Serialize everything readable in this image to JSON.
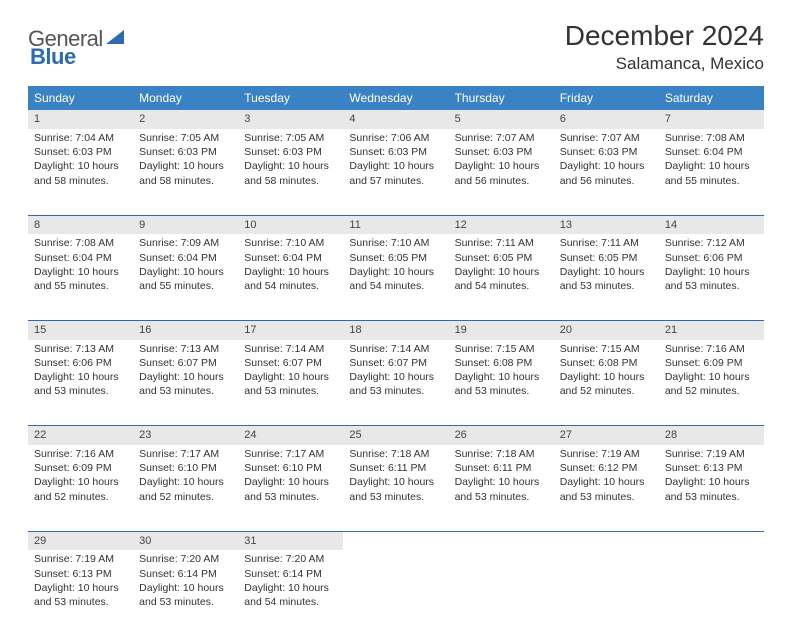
{
  "logo": {
    "part1": "General",
    "part2": "Blue",
    "accent_color": "#2d6ab0"
  },
  "title": "December 2024",
  "location": "Salamanca, Mexico",
  "colors": {
    "header_bg": "#3a82c4",
    "header_fg": "#ffffff",
    "daynum_bg": "#e8e8e8",
    "row_divider": "#2d6ab0",
    "text": "#333333"
  },
  "day_headers": [
    "Sunday",
    "Monday",
    "Tuesday",
    "Wednesday",
    "Thursday",
    "Friday",
    "Saturday"
  ],
  "days": [
    {
      "n": 1,
      "sr": "7:04 AM",
      "ss": "6:03 PM",
      "dl": "10 hours and 58 minutes."
    },
    {
      "n": 2,
      "sr": "7:05 AM",
      "ss": "6:03 PM",
      "dl": "10 hours and 58 minutes."
    },
    {
      "n": 3,
      "sr": "7:05 AM",
      "ss": "6:03 PM",
      "dl": "10 hours and 58 minutes."
    },
    {
      "n": 4,
      "sr": "7:06 AM",
      "ss": "6:03 PM",
      "dl": "10 hours and 57 minutes."
    },
    {
      "n": 5,
      "sr": "7:07 AM",
      "ss": "6:03 PM",
      "dl": "10 hours and 56 minutes."
    },
    {
      "n": 6,
      "sr": "7:07 AM",
      "ss": "6:03 PM",
      "dl": "10 hours and 56 minutes."
    },
    {
      "n": 7,
      "sr": "7:08 AM",
      "ss": "6:04 PM",
      "dl": "10 hours and 55 minutes."
    },
    {
      "n": 8,
      "sr": "7:08 AM",
      "ss": "6:04 PM",
      "dl": "10 hours and 55 minutes."
    },
    {
      "n": 9,
      "sr": "7:09 AM",
      "ss": "6:04 PM",
      "dl": "10 hours and 55 minutes."
    },
    {
      "n": 10,
      "sr": "7:10 AM",
      "ss": "6:04 PM",
      "dl": "10 hours and 54 minutes."
    },
    {
      "n": 11,
      "sr": "7:10 AM",
      "ss": "6:05 PM",
      "dl": "10 hours and 54 minutes."
    },
    {
      "n": 12,
      "sr": "7:11 AM",
      "ss": "6:05 PM",
      "dl": "10 hours and 54 minutes."
    },
    {
      "n": 13,
      "sr": "7:11 AM",
      "ss": "6:05 PM",
      "dl": "10 hours and 53 minutes."
    },
    {
      "n": 14,
      "sr": "7:12 AM",
      "ss": "6:06 PM",
      "dl": "10 hours and 53 minutes."
    },
    {
      "n": 15,
      "sr": "7:13 AM",
      "ss": "6:06 PM",
      "dl": "10 hours and 53 minutes."
    },
    {
      "n": 16,
      "sr": "7:13 AM",
      "ss": "6:07 PM",
      "dl": "10 hours and 53 minutes."
    },
    {
      "n": 17,
      "sr": "7:14 AM",
      "ss": "6:07 PM",
      "dl": "10 hours and 53 minutes."
    },
    {
      "n": 18,
      "sr": "7:14 AM",
      "ss": "6:07 PM",
      "dl": "10 hours and 53 minutes."
    },
    {
      "n": 19,
      "sr": "7:15 AM",
      "ss": "6:08 PM",
      "dl": "10 hours and 53 minutes."
    },
    {
      "n": 20,
      "sr": "7:15 AM",
      "ss": "6:08 PM",
      "dl": "10 hours and 52 minutes."
    },
    {
      "n": 21,
      "sr": "7:16 AM",
      "ss": "6:09 PM",
      "dl": "10 hours and 52 minutes."
    },
    {
      "n": 22,
      "sr": "7:16 AM",
      "ss": "6:09 PM",
      "dl": "10 hours and 52 minutes."
    },
    {
      "n": 23,
      "sr": "7:17 AM",
      "ss": "6:10 PM",
      "dl": "10 hours and 52 minutes."
    },
    {
      "n": 24,
      "sr": "7:17 AM",
      "ss": "6:10 PM",
      "dl": "10 hours and 53 minutes."
    },
    {
      "n": 25,
      "sr": "7:18 AM",
      "ss": "6:11 PM",
      "dl": "10 hours and 53 minutes."
    },
    {
      "n": 26,
      "sr": "7:18 AM",
      "ss": "6:11 PM",
      "dl": "10 hours and 53 minutes."
    },
    {
      "n": 27,
      "sr": "7:19 AM",
      "ss": "6:12 PM",
      "dl": "10 hours and 53 minutes."
    },
    {
      "n": 28,
      "sr": "7:19 AM",
      "ss": "6:13 PM",
      "dl": "10 hours and 53 minutes."
    },
    {
      "n": 29,
      "sr": "7:19 AM",
      "ss": "6:13 PM",
      "dl": "10 hours and 53 minutes."
    },
    {
      "n": 30,
      "sr": "7:20 AM",
      "ss": "6:14 PM",
      "dl": "10 hours and 53 minutes."
    },
    {
      "n": 31,
      "sr": "7:20 AM",
      "ss": "6:14 PM",
      "dl": "10 hours and 54 minutes."
    }
  ],
  "labels": {
    "sunrise": "Sunrise:",
    "sunset": "Sunset:",
    "daylight": "Daylight:"
  },
  "start_weekday": 0,
  "total_cells": 35
}
